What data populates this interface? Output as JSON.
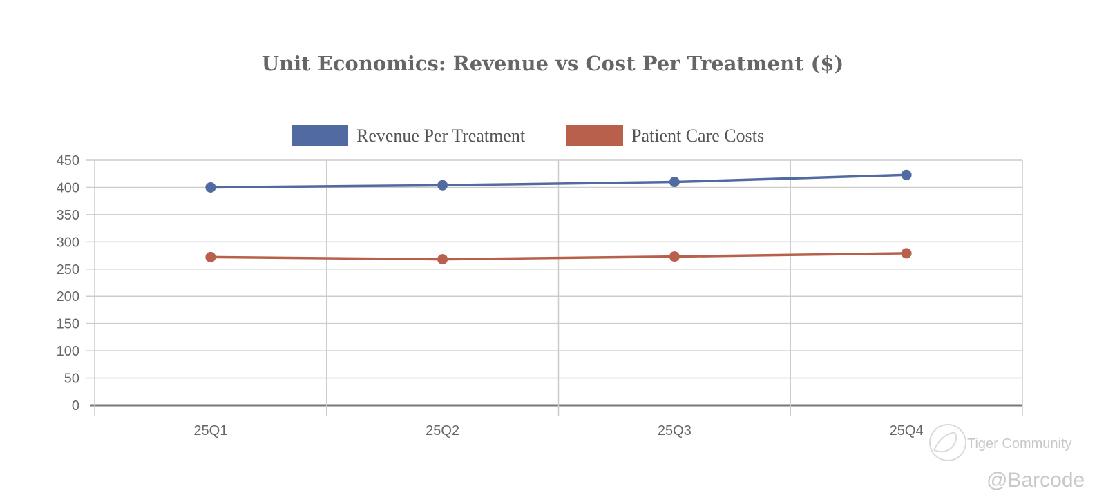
{
  "chart_data": {
    "type": "line",
    "title": "Unit Economics: Revenue vs Cost Per Treatment ($)",
    "xlabel": "",
    "ylabel": "",
    "categories": [
      "25Q1",
      "25Q2",
      "25Q3",
      "25Q4"
    ],
    "series": [
      {
        "name": "Revenue Per Treatment",
        "color": "#516ba1",
        "values": [
          400,
          404,
          410,
          423
        ]
      },
      {
        "name": "Patient Care Costs",
        "color": "#b9604c",
        "values": [
          272,
          268,
          273,
          279
        ]
      }
    ],
    "ylim": [
      0,
      450
    ],
    "yticks": [
      0,
      50,
      100,
      150,
      200,
      250,
      300,
      350,
      400,
      450
    ],
    "grid": true,
    "legend_position": "top-center"
  },
  "watermark": {
    "brand": "Tiger Community",
    "handle": "@Barcode"
  }
}
